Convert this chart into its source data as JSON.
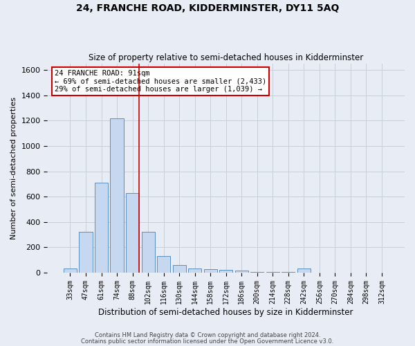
{
  "title": "24, FRANCHE ROAD, KIDDERMINSTER, DY11 5AQ",
  "subtitle": "Size of property relative to semi-detached houses in Kidderminster",
  "xlabel": "Distribution of semi-detached houses by size in Kidderminster",
  "ylabel": "Number of semi-detached properties",
  "footer1": "Contains HM Land Registry data © Crown copyright and database right 2024.",
  "footer2": "Contains public sector information licensed under the Open Government Licence v3.0.",
  "bar_labels": [
    "33sqm",
    "47sqm",
    "61sqm",
    "74sqm",
    "88sqm",
    "102sqm",
    "116sqm",
    "130sqm",
    "144sqm",
    "158sqm",
    "172sqm",
    "186sqm",
    "200sqm",
    "214sqm",
    "228sqm",
    "242sqm",
    "256sqm",
    "270sqm",
    "284sqm",
    "298sqm",
    "312sqm"
  ],
  "bar_values": [
    30,
    320,
    710,
    1220,
    630,
    320,
    130,
    60,
    35,
    25,
    20,
    15,
    8,
    5,
    3,
    35,
    2,
    1,
    1,
    1,
    1
  ],
  "bar_color": "#c5d8f0",
  "bar_edge_color": "#5a8fc2",
  "annotation_text1": "24 FRANCHE ROAD: 91sqm",
  "annotation_text2": "← 69% of semi-detached houses are smaller (2,433)",
  "annotation_text3": "29% of semi-detached houses are larger (1,039) →",
  "vline_color": "#cc0000",
  "annotation_box_color": "#ffffff",
  "annotation_box_edge": "#cc0000",
  "ylim": [
    0,
    1650
  ],
  "yticks": [
    0,
    200,
    400,
    600,
    800,
    1000,
    1200,
    1400,
    1600
  ],
  "grid_color": "#c8d0dc",
  "bg_color": "#e8ecf4"
}
